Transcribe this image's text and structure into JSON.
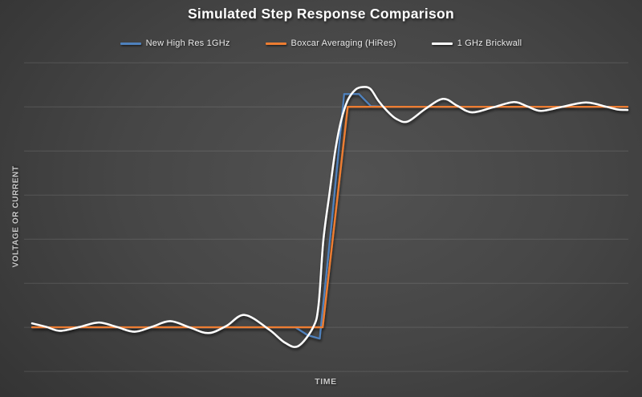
{
  "colors": {
    "background_center": "#525252",
    "background_edge": "#232323",
    "gridline": "rgba(255,255,255,0.12)",
    "title_text": "#ffffff",
    "legend_text": "#e9e9e9",
    "axis_label_text": "#c9c9c9",
    "series_blue": "#4f81bd",
    "series_orange": "#ed7d31",
    "series_white": "#ffffff"
  },
  "chart_data": {
    "type": "line",
    "title": "Simulated Step Response Comparison",
    "xlabel": "TIME",
    "ylabel": "VOLTAGE OR CURRENT",
    "x_range": [
      0,
      100
    ],
    "y_range": [
      -0.225,
      1.23
    ],
    "grid": true,
    "gridlines_v": [
      -0.2,
      0,
      0.2,
      0.4,
      0.6,
      0.8,
      1.0,
      1.2
    ],
    "axis_tick_labels": "none",
    "legend_position": "top-center",
    "step_low_value": 0,
    "step_high_value": 1,
    "step_edge_t": 51,
    "series": [
      {
        "name": "New High Res 1GHz",
        "color": "#4f81bd",
        "smooth": false,
        "width": 2.25,
        "points": [
          [
            0,
            0
          ],
          [
            44.2,
            0
          ],
          [
            46.3,
            -0.036
          ],
          [
            48.3,
            -0.051
          ],
          [
            50.4,
            0.5
          ],
          [
            52.4,
            1.058
          ],
          [
            54.9,
            1.058
          ],
          [
            56.9,
            1.003
          ],
          [
            60,
            1.0
          ],
          [
            100,
            1.0
          ]
        ]
      },
      {
        "name": "Boxcar Averaging (HiRes)",
        "color": "#ed7d31",
        "smooth": false,
        "width": 2.4,
        "points": [
          [
            0,
            0
          ],
          [
            48.8,
            0
          ],
          [
            53.0,
            1.0
          ],
          [
            100,
            1.0
          ]
        ]
      },
      {
        "name": "1 GHz Brickwall",
        "color": "#ffffff",
        "smooth": true,
        "width": 2.5,
        "points": [
          [
            0,
            0.018
          ],
          [
            2.4,
            0.002
          ],
          [
            4.7,
            -0.016
          ],
          [
            8,
            0.002
          ],
          [
            11.2,
            0.022
          ],
          [
            14.2,
            0.002
          ],
          [
            17.2,
            -0.02
          ],
          [
            20.2,
            0.003
          ],
          [
            23.2,
            0.028
          ],
          [
            26.4,
            0
          ],
          [
            29.6,
            -0.026
          ],
          [
            32.6,
            0.006
          ],
          [
            35.7,
            0.056
          ],
          [
            39.8,
            -0.01
          ],
          [
            42.5,
            -0.07
          ],
          [
            44.7,
            -0.085
          ],
          [
            47.2,
            0.0
          ],
          [
            48.1,
            0.1
          ],
          [
            48.9,
            0.39
          ],
          [
            49.9,
            0.6
          ],
          [
            50.9,
            0.8
          ],
          [
            51.9,
            0.938
          ],
          [
            53.0,
            1.03
          ],
          [
            54.3,
            1.078
          ],
          [
            55.5,
            1.09
          ],
          [
            56.8,
            1.082
          ],
          [
            58.1,
            1.03
          ],
          [
            59.5,
            0.985
          ],
          [
            61.2,
            0.945
          ],
          [
            63.1,
            0.934
          ],
          [
            66.0,
            0.99
          ],
          [
            69.0,
            1.036
          ],
          [
            71.4,
            1.005
          ],
          [
            73.9,
            0.975
          ],
          [
            77.4,
            0.998
          ],
          [
            80.9,
            1.022
          ],
          [
            83.2,
            1.002
          ],
          [
            85.4,
            0.982
          ],
          [
            89.0,
            1.0
          ],
          [
            93.0,
            1.02
          ],
          [
            96.5,
            1.0
          ],
          [
            98.3,
            0.988
          ],
          [
            100,
            0.986
          ]
        ]
      }
    ]
  }
}
